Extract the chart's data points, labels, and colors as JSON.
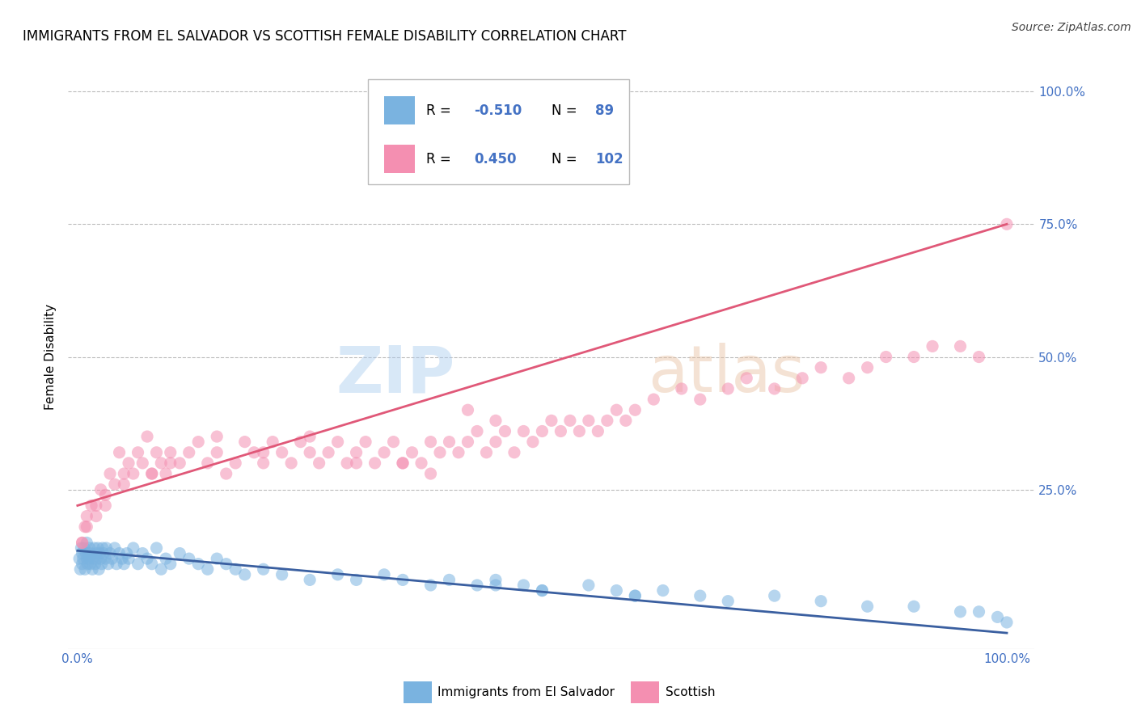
{
  "title": "IMMIGRANTS FROM EL SALVADOR VS SCOTTISH FEMALE DISABILITY CORRELATION CHART",
  "source": "Source: ZipAtlas.com",
  "ylabel": "Female Disability",
  "title_fontsize": 12,
  "source_fontsize": 10,
  "axis_label_color": "#4472c4",
  "xlim": [
    0,
    100
  ],
  "ylim": [
    0,
    100
  ],
  "blue_color": "#7ab3e0",
  "pink_color": "#f48fb1",
  "blue_line_color": "#3a5fa0",
  "pink_line_color": "#e05878",
  "legend_R_blue": "-0.510",
  "legend_N_blue": "89",
  "legend_R_pink": "0.450",
  "legend_N_pink": "102",
  "value_color": "#4472c4",
  "background_color": "#ffffff",
  "grid_color": "#bbbbbb",
  "scatter_alpha": 0.55,
  "scatter_size": 120,
  "blue_scatter_x": [
    0.2,
    0.3,
    0.4,
    0.5,
    0.5,
    0.6,
    0.7,
    0.8,
    0.9,
    1.0,
    1.0,
    1.1,
    1.2,
    1.3,
    1.3,
    1.4,
    1.5,
    1.6,
    1.7,
    1.8,
    1.9,
    2.0,
    2.1,
    2.2,
    2.3,
    2.4,
    2.5,
    2.6,
    2.7,
    2.8,
    3.0,
    3.1,
    3.3,
    3.5,
    3.7,
    4.0,
    4.2,
    4.5,
    4.8,
    5.0,
    5.3,
    5.5,
    6.0,
    6.5,
    7.0,
    7.5,
    8.0,
    8.5,
    9.0,
    9.5,
    10.0,
    11.0,
    12.0,
    13.0,
    14.0,
    15.0,
    16.0,
    17.0,
    18.0,
    20.0,
    22.0,
    25.0,
    28.0,
    30.0,
    33.0,
    35.0,
    38.0,
    40.0,
    43.0,
    45.0,
    48.0,
    50.0,
    55.0,
    58.0,
    60.0,
    63.0,
    67.0,
    70.0,
    75.0,
    80.0,
    85.0,
    90.0,
    95.0,
    97.0,
    99.0,
    100.0,
    60.0,
    50.0,
    45.0
  ],
  "blue_scatter_y": [
    12,
    10,
    14,
    11,
    13,
    12,
    14,
    10,
    13,
    12,
    15,
    11,
    13,
    12,
    14,
    11,
    13,
    10,
    12,
    14,
    11,
    13,
    12,
    14,
    10,
    13,
    12,
    11,
    14,
    13,
    12,
    14,
    11,
    13,
    12,
    14,
    11,
    13,
    12,
    11,
    13,
    12,
    14,
    11,
    13,
    12,
    11,
    14,
    10,
    12,
    11,
    13,
    12,
    11,
    10,
    12,
    11,
    10,
    9,
    10,
    9,
    8,
    9,
    8,
    9,
    8,
    7,
    8,
    7,
    8,
    7,
    6,
    7,
    6,
    5,
    6,
    5,
    4,
    5,
    4,
    3,
    3,
    2,
    2,
    1,
    0,
    5,
    6,
    7
  ],
  "pink_scatter_x": [
    0.5,
    1.0,
    1.5,
    2.0,
    2.5,
    3.0,
    3.5,
    4.0,
    4.5,
    5.0,
    5.5,
    6.0,
    6.5,
    7.0,
    7.5,
    8.0,
    8.5,
    9.0,
    9.5,
    10.0,
    11.0,
    12.0,
    13.0,
    14.0,
    15.0,
    16.0,
    17.0,
    18.0,
    19.0,
    20.0,
    21.0,
    22.0,
    23.0,
    24.0,
    25.0,
    26.0,
    27.0,
    28.0,
    29.0,
    30.0,
    31.0,
    32.0,
    33.0,
    34.0,
    35.0,
    36.0,
    37.0,
    38.0,
    39.0,
    40.0,
    41.0,
    42.0,
    43.0,
    44.0,
    45.0,
    46.0,
    47.0,
    48.0,
    49.0,
    50.0,
    51.0,
    52.0,
    53.0,
    54.0,
    55.0,
    56.0,
    57.0,
    58.0,
    59.0,
    60.0,
    62.0,
    65.0,
    67.0,
    70.0,
    72.0,
    75.0,
    78.0,
    80.0,
    83.0,
    85.0,
    87.0,
    90.0,
    92.0,
    95.0,
    97.0,
    100.0,
    35.0,
    38.0,
    20.0,
    25.0,
    30.0,
    15.0,
    10.0,
    8.0,
    5.0,
    3.0,
    2.0,
    1.0,
    0.8,
    0.5,
    42.0,
    45.0
  ],
  "pink_scatter_y": [
    15,
    18,
    22,
    20,
    25,
    22,
    28,
    26,
    32,
    28,
    30,
    28,
    32,
    30,
    35,
    28,
    32,
    30,
    28,
    32,
    30,
    32,
    34,
    30,
    32,
    28,
    30,
    34,
    32,
    30,
    34,
    32,
    30,
    34,
    32,
    30,
    32,
    34,
    30,
    32,
    34,
    30,
    32,
    34,
    30,
    32,
    30,
    34,
    32,
    34,
    32,
    34,
    36,
    32,
    34,
    36,
    32,
    36,
    34,
    36,
    38,
    36,
    38,
    36,
    38,
    36,
    38,
    40,
    38,
    40,
    42,
    44,
    42,
    44,
    46,
    44,
    46,
    48,
    46,
    48,
    50,
    50,
    52,
    52,
    50,
    75,
    30,
    28,
    32,
    35,
    30,
    35,
    30,
    28,
    26,
    24,
    22,
    20,
    18,
    15,
    40,
    38
  ],
  "blue_line_x": [
    0,
    100
  ],
  "blue_line_y": [
    13.5,
    -2
  ],
  "pink_line_x": [
    0,
    100
  ],
  "pink_line_y": [
    22,
    75
  ],
  "blue_line_style": "solid",
  "pink_line_style": "solid"
}
